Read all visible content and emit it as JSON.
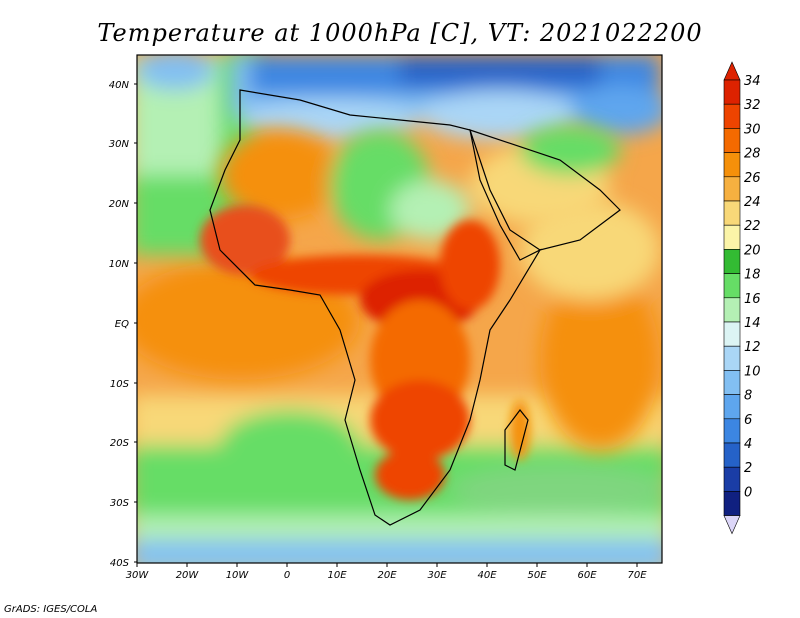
{
  "title": "Temperature at 1000hPa [C], VT: 2021022200",
  "credit": "GrADS: IGES/COLA",
  "map": {
    "lon_ticks": [
      "30W",
      "20W",
      "10W",
      "0",
      "10E",
      "20E",
      "30E",
      "40E",
      "50E",
      "60E",
      "70E"
    ],
    "lat_ticks": [
      "40N",
      "30N",
      "20N",
      "10N",
      "EQ",
      "10S",
      "20S",
      "30S",
      "40S"
    ]
  },
  "colorbar": {
    "levels": [
      "34",
      "32",
      "30",
      "28",
      "26",
      "24",
      "22",
      "20",
      "18",
      "16",
      "14",
      "12",
      "10",
      "8",
      "6",
      "4",
      "2",
      "0"
    ],
    "colors": [
      "#dd2200",
      "#ee4400",
      "#f46a00",
      "#f5900a",
      "#f6b040",
      "#f8d878",
      "#fbf4a8",
      "#33bb33",
      "#66dd66",
      "#b4f0b4",
      "#dcf4f4",
      "#aad6f6",
      "#82bff2",
      "#5ea6ee",
      "#3c86e2",
      "#2562c8",
      "#1a3da6",
      "#102080",
      "#dcd6f8"
    ],
    "lower_cap_color": "#dcd6f8",
    "upper_cap_color": "#dd2200"
  },
  "palette": {
    "sea_cool": "#7fd67f",
    "sea_warm": "#f5a64a",
    "land_hot": "#e8501a",
    "north_cold": "#3c86e2"
  }
}
